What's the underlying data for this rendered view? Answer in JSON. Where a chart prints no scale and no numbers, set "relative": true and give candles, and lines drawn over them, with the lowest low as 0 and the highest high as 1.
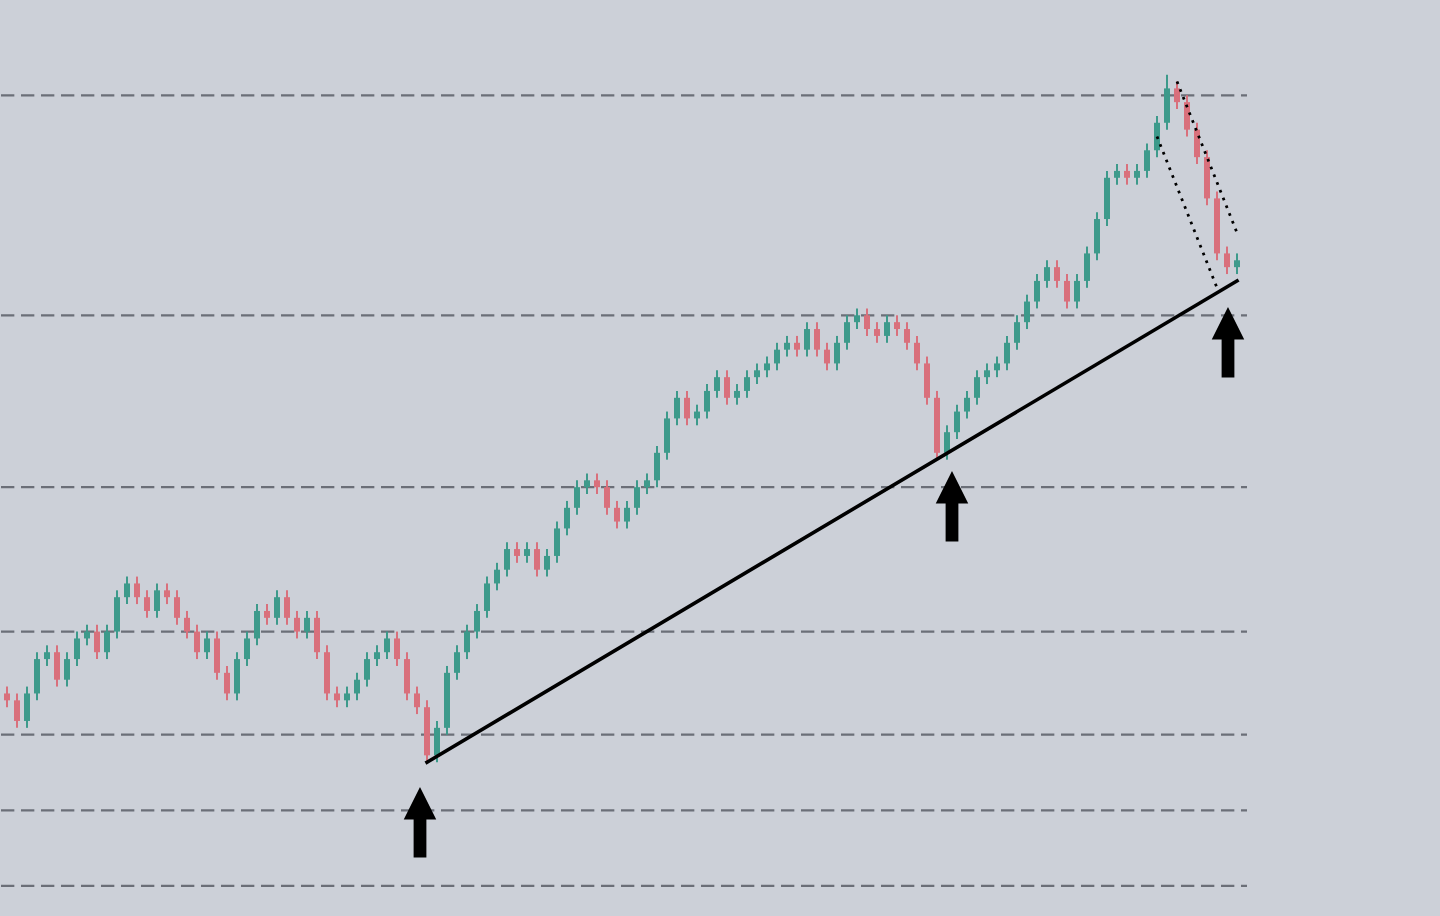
{
  "chart_data": {
    "type": "candlestick",
    "relative": true,
    "categories": [
      null,
      null,
      null,
      null,
      null,
      null,
      null,
      null,
      null,
      null,
      null,
      null,
      null,
      null,
      null,
      null,
      null,
      null,
      null,
      null,
      null,
      null,
      null,
      null,
      null,
      null,
      null,
      null,
      null,
      null,
      null,
      null,
      null,
      null,
      null,
      null,
      null,
      null,
      null,
      null,
      null,
      null,
      null,
      null,
      null,
      null,
      null,
      null,
      null,
      null,
      null,
      null,
      null,
      null,
      null,
      null,
      null,
      null,
      null,
      null,
      null,
      null,
      null,
      null,
      null,
      null,
      null,
      null,
      null,
      null,
      null,
      null,
      null,
      null,
      null,
      null,
      null,
      null,
      null,
      null,
      null,
      null,
      null,
      null,
      null,
      null,
      null,
      null,
      null,
      null,
      null,
      null,
      null,
      null,
      null,
      null,
      null,
      null,
      null,
      null,
      null,
      null,
      null,
      null,
      null,
      null,
      null,
      null,
      null,
      null,
      null,
      null,
      null,
      null,
      null,
      null,
      null,
      null,
      null,
      null,
      null,
      null,
      null,
      null
    ],
    "ohlc": [
      [
        0.1,
        0.11,
        0.08,
        0.09
      ],
      [
        0.09,
        0.1,
        0.05,
        0.06
      ],
      [
        0.06,
        0.11,
        0.05,
        0.1
      ],
      [
        0.1,
        0.16,
        0.09,
        0.15
      ],
      [
        0.15,
        0.17,
        0.14,
        0.16
      ],
      [
        0.16,
        0.17,
        0.11,
        0.12
      ],
      [
        0.12,
        0.16,
        0.11,
        0.15
      ],
      [
        0.15,
        0.19,
        0.14,
        0.18
      ],
      [
        0.18,
        0.2,
        0.17,
        0.19
      ],
      [
        0.19,
        0.2,
        0.15,
        0.16
      ],
      [
        0.16,
        0.2,
        0.15,
        0.19
      ],
      [
        0.19,
        0.25,
        0.18,
        0.24
      ],
      [
        0.24,
        0.27,
        0.23,
        0.26
      ],
      [
        0.26,
        0.27,
        0.23,
        0.24
      ],
      [
        0.24,
        0.25,
        0.21,
        0.22
      ],
      [
        0.22,
        0.26,
        0.21,
        0.25
      ],
      [
        0.25,
        0.26,
        0.23,
        0.24
      ],
      [
        0.24,
        0.25,
        0.2,
        0.21
      ],
      [
        0.21,
        0.22,
        0.18,
        0.19
      ],
      [
        0.19,
        0.2,
        0.15,
        0.16
      ],
      [
        0.16,
        0.19,
        0.15,
        0.18
      ],
      [
        0.18,
        0.19,
        0.12,
        0.13
      ],
      [
        0.13,
        0.14,
        0.09,
        0.1
      ],
      [
        0.1,
        0.16,
        0.09,
        0.15
      ],
      [
        0.15,
        0.19,
        0.14,
        0.18
      ],
      [
        0.18,
        0.23,
        0.17,
        0.22
      ],
      [
        0.22,
        0.23,
        0.2,
        0.21
      ],
      [
        0.21,
        0.25,
        0.2,
        0.24
      ],
      [
        0.24,
        0.25,
        0.2,
        0.21
      ],
      [
        0.21,
        0.22,
        0.18,
        0.19
      ],
      [
        0.19,
        0.22,
        0.18,
        0.21
      ],
      [
        0.21,
        0.22,
        0.15,
        0.16
      ],
      [
        0.16,
        0.17,
        0.09,
        0.1
      ],
      [
        0.1,
        0.11,
        0.08,
        0.09
      ],
      [
        0.09,
        0.11,
        0.08,
        0.1
      ],
      [
        0.1,
        0.13,
        0.09,
        0.12
      ],
      [
        0.12,
        0.16,
        0.11,
        0.15
      ],
      [
        0.15,
        0.17,
        0.14,
        0.16
      ],
      [
        0.16,
        0.19,
        0.15,
        0.18
      ],
      [
        0.18,
        0.19,
        0.14,
        0.15
      ],
      [
        0.15,
        0.16,
        0.09,
        0.1
      ],
      [
        0.1,
        0.11,
        0.07,
        0.08
      ],
      [
        0.08,
        0.09,
        0,
        0.01
      ],
      [
        0.01,
        0.06,
        0,
        0.05
      ],
      [
        0.05,
        0.14,
        0.04,
        0.13
      ],
      [
        0.13,
        0.17,
        0.12,
        0.16
      ],
      [
        0.16,
        0.2,
        0.15,
        0.19
      ],
      [
        0.19,
        0.23,
        0.18,
        0.22
      ],
      [
        0.22,
        0.27,
        0.21,
        0.26
      ],
      [
        0.26,
        0.29,
        0.25,
        0.28
      ],
      [
        0.28,
        0.32,
        0.27,
        0.31
      ],
      [
        0.31,
        0.32,
        0.29,
        0.3
      ],
      [
        0.3,
        0.32,
        0.29,
        0.31
      ],
      [
        0.31,
        0.32,
        0.27,
        0.28
      ],
      [
        0.28,
        0.31,
        0.27,
        0.3
      ],
      [
        0.3,
        0.35,
        0.29,
        0.34
      ],
      [
        0.34,
        0.38,
        0.33,
        0.37
      ],
      [
        0.37,
        0.41,
        0.36,
        0.4
      ],
      [
        0.4,
        0.42,
        0.39,
        0.41
      ],
      [
        0.41,
        0.42,
        0.39,
        0.4
      ],
      [
        0.4,
        0.41,
        0.36,
        0.37
      ],
      [
        0.37,
        0.38,
        0.34,
        0.35
      ],
      [
        0.35,
        0.38,
        0.34,
        0.37
      ],
      [
        0.37,
        0.41,
        0.36,
        0.4
      ],
      [
        0.4,
        0.42,
        0.39,
        0.41
      ],
      [
        0.41,
        0.46,
        0.4,
        0.45
      ],
      [
        0.45,
        0.51,
        0.44,
        0.5
      ],
      [
        0.5,
        0.54,
        0.49,
        0.53
      ],
      [
        0.53,
        0.54,
        0.49,
        0.5
      ],
      [
        0.5,
        0.52,
        0.49,
        0.51
      ],
      [
        0.51,
        0.55,
        0.5,
        0.54
      ],
      [
        0.54,
        0.57,
        0.53,
        0.56
      ],
      [
        0.56,
        0.57,
        0.52,
        0.53
      ],
      [
        0.53,
        0.55,
        0.52,
        0.54
      ],
      [
        0.54,
        0.57,
        0.53,
        0.56
      ],
      [
        0.56,
        0.58,
        0.55,
        0.57
      ],
      [
        0.57,
        0.59,
        0.56,
        0.58
      ],
      [
        0.58,
        0.61,
        0.57,
        0.6
      ],
      [
        0.6,
        0.62,
        0.59,
        0.61
      ],
      [
        0.61,
        0.62,
        0.59,
        0.6
      ],
      [
        0.6,
        0.64,
        0.59,
        0.63
      ],
      [
        0.63,
        0.64,
        0.59,
        0.6
      ],
      [
        0.6,
        0.61,
        0.57,
        0.58
      ],
      [
        0.58,
        0.62,
        0.57,
        0.61
      ],
      [
        0.61,
        0.65,
        0.6,
        0.64
      ],
      [
        0.64,
        0.66,
        0.63,
        0.65
      ],
      [
        0.65,
        0.66,
        0.62,
        0.63
      ],
      [
        0.63,
        0.64,
        0.61,
        0.62
      ],
      [
        0.62,
        0.65,
        0.61,
        0.64
      ],
      [
        0.64,
        0.65,
        0.62,
        0.63
      ],
      [
        0.63,
        0.64,
        0.6,
        0.61
      ],
      [
        0.61,
        0.62,
        0.57,
        0.58
      ],
      [
        0.58,
        0.59,
        0.52,
        0.53
      ],
      [
        0.53,
        0.54,
        0.44,
        0.45
      ],
      [
        0.45,
        0.49,
        0.44,
        0.48
      ],
      [
        0.48,
        0.52,
        0.47,
        0.51
      ],
      [
        0.51,
        0.54,
        0.5,
        0.53
      ],
      [
        0.53,
        0.57,
        0.52,
        0.56
      ],
      [
        0.56,
        0.58,
        0.55,
        0.57
      ],
      [
        0.57,
        0.59,
        0.56,
        0.58
      ],
      [
        0.58,
        0.62,
        0.57,
        0.61
      ],
      [
        0.61,
        0.65,
        0.6,
        0.64
      ],
      [
        0.64,
        0.68,
        0.63,
        0.67
      ],
      [
        0.67,
        0.71,
        0.66,
        0.7
      ],
      [
        0.7,
        0.73,
        0.69,
        0.72
      ],
      [
        0.72,
        0.73,
        0.69,
        0.7
      ],
      [
        0.7,
        0.71,
        0.66,
        0.67
      ],
      [
        0.67,
        0.71,
        0.66,
        0.7
      ],
      [
        0.7,
        0.75,
        0.69,
        0.74
      ],
      [
        0.74,
        0.8,
        0.73,
        0.79
      ],
      [
        0.79,
        0.86,
        0.78,
        0.85
      ],
      [
        0.85,
        0.87,
        0.84,
        0.86
      ],
      [
        0.86,
        0.87,
        0.84,
        0.85
      ],
      [
        0.85,
        0.87,
        0.84,
        0.86
      ],
      [
        0.86,
        0.9,
        0.85,
        0.89
      ],
      [
        0.89,
        0.94,
        0.88,
        0.93
      ],
      [
        0.93,
        1,
        0.92,
        0.98
      ],
      [
        0.98,
        0.99,
        0.95,
        0.96
      ],
      [
        0.96,
        0.97,
        0.91,
        0.92
      ],
      [
        0.92,
        0.93,
        0.87,
        0.88
      ],
      [
        0.88,
        0.89,
        0.81,
        0.82
      ],
      [
        0.82,
        0.83,
        0.73,
        0.74
      ],
      [
        0.74,
        0.75,
        0.71,
        0.72
      ],
      [
        0.72,
        0.74,
        0.71,
        0.73
      ]
    ],
    "series": [
      {
        "type": "line",
        "color": "#000000",
        "line_style": "solid",
        "values": [
          null,
          null,
          null,
          null,
          null,
          null,
          null,
          null,
          null,
          null,
          null,
          null,
          null,
          null,
          null,
          null,
          null,
          null,
          null,
          null,
          null,
          null,
          null,
          null,
          null,
          null,
          null,
          null,
          null,
          null,
          null,
          null,
          null,
          null,
          null,
          null,
          null,
          null,
          null,
          null,
          null,
          null,
          0,
          null,
          null,
          null,
          null,
          null,
          null,
          null,
          null,
          null,
          null,
          null,
          null,
          null,
          null,
          null,
          null,
          null,
          null,
          null,
          null,
          null,
          null,
          null,
          null,
          null,
          null,
          null,
          null,
          null,
          null,
          null,
          null,
          null,
          null,
          null,
          null,
          null,
          null,
          null,
          null,
          null,
          null,
          null,
          null,
          null,
          null,
          null,
          null,
          null,
          null,
          null,
          null,
          null,
          null,
          null,
          null,
          null,
          null,
          null,
          null,
          null,
          null,
          null,
          null,
          null,
          null,
          null,
          null,
          null,
          null,
          null,
          null,
          null,
          null,
          null,
          null,
          null,
          null,
          null,
          null,
          0.7
        ]
      },
      {
        "type": "line",
        "color": "#000000",
        "line_style": "dotted",
        "values": [
          null,
          null,
          null,
          null,
          null,
          null,
          null,
          null,
          null,
          null,
          null,
          null,
          null,
          null,
          null,
          null,
          null,
          null,
          null,
          null,
          null,
          null,
          null,
          null,
          null,
          null,
          null,
          null,
          null,
          null,
          null,
          null,
          null,
          null,
          null,
          null,
          null,
          null,
          null,
          null,
          null,
          null,
          null,
          null,
          null,
          null,
          null,
          null,
          null,
          null,
          null,
          null,
          null,
          null,
          null,
          null,
          null,
          null,
          null,
          null,
          null,
          null,
          null,
          null,
          null,
          null,
          null,
          null,
          null,
          null,
          null,
          null,
          null,
          null,
          null,
          null,
          null,
          null,
          null,
          null,
          null,
          null,
          null,
          null,
          null,
          null,
          null,
          null,
          null,
          null,
          null,
          null,
          null,
          null,
          null,
          null,
          null,
          null,
          null,
          null,
          null,
          null,
          null,
          null,
          null,
          null,
          null,
          null,
          null,
          null,
          null,
          null,
          null,
          null,
          null,
          null,
          null,
          0.99,
          null,
          null,
          null,
          null,
          null,
          0.77
        ]
      },
      {
        "type": "line",
        "color": "#000000",
        "line_style": "dotted",
        "values": [
          null,
          null,
          null,
          null,
          null,
          null,
          null,
          null,
          null,
          null,
          null,
          null,
          null,
          null,
          null,
          null,
          null,
          null,
          null,
          null,
          null,
          null,
          null,
          null,
          null,
          null,
          null,
          null,
          null,
          null,
          null,
          null,
          null,
          null,
          null,
          null,
          null,
          null,
          null,
          null,
          null,
          null,
          null,
          null,
          null,
          null,
          null,
          null,
          null,
          null,
          null,
          null,
          null,
          null,
          null,
          null,
          null,
          null,
          null,
          null,
          null,
          null,
          null,
          null,
          null,
          null,
          null,
          null,
          null,
          null,
          null,
          null,
          null,
          null,
          null,
          null,
          null,
          null,
          null,
          null,
          null,
          null,
          null,
          null,
          null,
          null,
          null,
          null,
          null,
          null,
          null,
          null,
          null,
          null,
          null,
          null,
          null,
          null,
          null,
          null,
          null,
          null,
          null,
          null,
          null,
          null,
          null,
          null,
          null,
          null,
          null,
          null,
          null,
          null,
          null,
          0.91,
          null,
          null,
          null,
          null,
          null,
          0.69,
          null,
          null
        ]
      }
    ],
    "ref_lines": [
      {
        "axis": "y",
        "value": 0.97,
        "color": "#6b6f78",
        "line_style": "dashed"
      },
      {
        "axis": "y",
        "value": 0.65,
        "color": "#6b6f78",
        "line_style": "dashed"
      },
      {
        "axis": "y",
        "value": 0.4,
        "color": "#6b6f78",
        "line_style": "dashed"
      },
      {
        "axis": "y",
        "value": 0.19,
        "color": "#6b6f78",
        "line_style": "dashed"
      },
      {
        "axis": "y",
        "value": 0.04,
        "color": "#6b6f78",
        "line_style": "dashed"
      },
      {
        "axis": "y",
        "value": -0.07,
        "color": "#6b6f78",
        "line_style": "dashed"
      },
      {
        "axis": "y",
        "value": -0.18,
        "color": "#6b6f78",
        "line_style": "dashed"
      }
    ]
  }
}
